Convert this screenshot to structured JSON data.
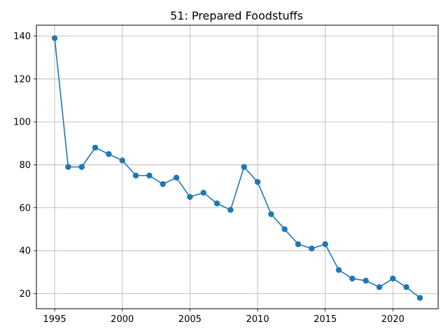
{
  "chart_data": {
    "type": "line",
    "title": "51: Prepared Foodstuffs",
    "xlabel": "",
    "ylabel": "",
    "xlim": [
      1993.65,
      2023.35
    ],
    "ylim": [
      12.95,
      145.05
    ],
    "grid": true,
    "xticks": [
      1995,
      2000,
      2005,
      2010,
      2015,
      2020
    ],
    "yticks": [
      20,
      40,
      60,
      80,
      100,
      120,
      140
    ],
    "color": "#1f77b4",
    "marker": "circle",
    "series": [
      {
        "x": [
          1995,
          1996,
          1997,
          1998,
          1999,
          2000,
          2001,
          2002,
          2003,
          2004,
          2005,
          2006,
          2007,
          2008,
          2009,
          2010,
          2011,
          2012,
          2013,
          2014,
          2015,
          2016,
          2017,
          2018,
          2019,
          2020,
          2021,
          2022
        ],
        "values": [
          139,
          79,
          79,
          88,
          85,
          82,
          75,
          75,
          71,
          74,
          65,
          67,
          62,
          59,
          79,
          72,
          57,
          50,
          43,
          41,
          43,
          31,
          27,
          26,
          23,
          27,
          23,
          18
        ]
      }
    ]
  }
}
